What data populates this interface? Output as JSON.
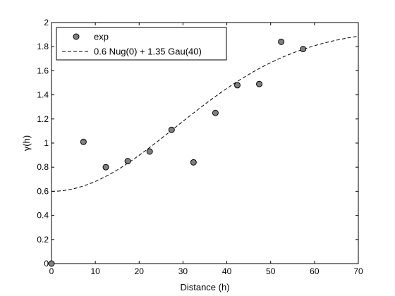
{
  "chart_data": {
    "type": "scatter",
    "title": "",
    "xlabel": "Distance (h)",
    "ylabel": "γ(h)",
    "xlim": [
      0,
      70
    ],
    "ylim": [
      0,
      2
    ],
    "xticks": [
      0,
      10,
      20,
      30,
      40,
      50,
      60,
      70
    ],
    "yticks": [
      0,
      0.2,
      0.4,
      0.6,
      0.8,
      1,
      1.2,
      1.4,
      1.6,
      1.8,
      2
    ],
    "grid": false,
    "legend_position": "top-left",
    "series": [
      {
        "name": "exp",
        "kind": "scatter",
        "marker_color": "#808080",
        "x": [
          0,
          7.3,
          12.4,
          17.4,
          22.4,
          27.4,
          32.4,
          37.4,
          42.4,
          47.4,
          52.4,
          57.4
        ],
        "y": [
          0,
          1.01,
          0.8,
          0.85,
          0.93,
          1.11,
          0.84,
          1.25,
          1.48,
          1.49,
          1.84,
          1.78
        ]
      },
      {
        "name": "0.6 Nug(0) + 1.35 Gau(40)",
        "kind": "line",
        "line_style": "dashed",
        "line_color": "#000000",
        "nugget": 0.6,
        "sill": 1.35,
        "range": 40
      }
    ]
  }
}
